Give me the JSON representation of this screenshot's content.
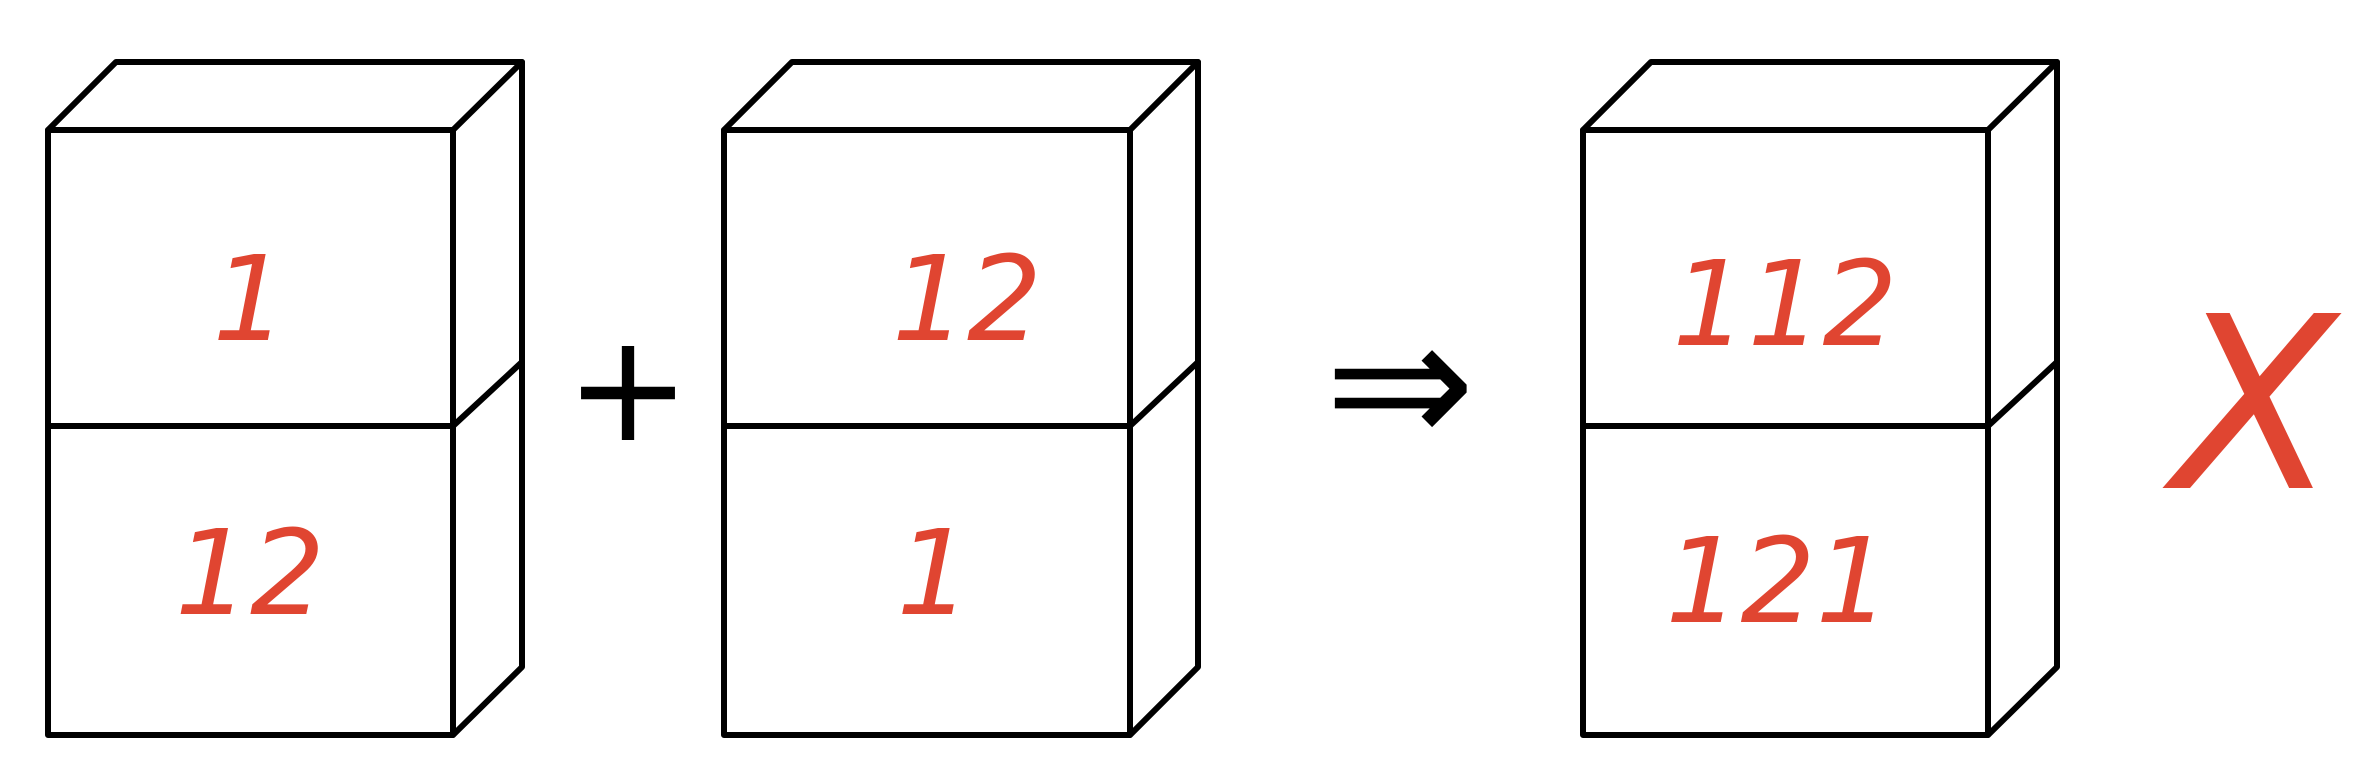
{
  "colors": {
    "ink": "#000000",
    "marker_red": "#e04531",
    "background": "#ffffff"
  },
  "operators": {
    "plus": "+",
    "implies": "⇒",
    "wrong_mark": "X"
  },
  "boxes": [
    {
      "top": "1",
      "bottom": "12"
    },
    {
      "top": "12",
      "bottom": "1"
    },
    {
      "top": "112",
      "bottom": "121"
    }
  ]
}
